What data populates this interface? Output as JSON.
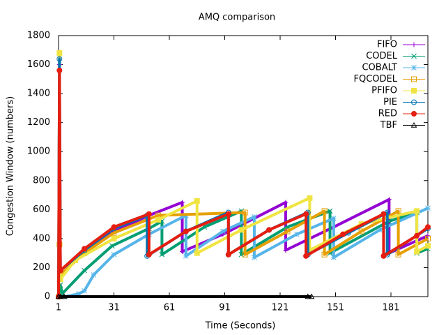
{
  "chart_data": {
    "type": "line",
    "title": "AMQ comparison",
    "x_label": "Time (Seconds)",
    "y_label": "Congestion Window (numbers)",
    "xlim": [
      1,
      201
    ],
    "xticks": [
      1,
      31,
      61,
      91,
      121,
      151,
      181
    ],
    "ylim": [
      0,
      1800
    ],
    "yticks": [
      0,
      200,
      400,
      600,
      800,
      1000,
      1200,
      1400,
      1600,
      1800
    ],
    "legend": "top-right",
    "series": [
      {
        "name": "FIFO",
        "color": "#9400d3",
        "marker": "plus",
        "x": [
          1,
          1.5,
          2,
          15,
          31,
          50,
          68,
          68,
          90,
          124,
          124,
          150,
          180,
          180,
          201
        ],
        "values": [
          0,
          1600,
          180,
          320,
          450,
          560,
          650,
          310,
          430,
          650,
          320,
          480,
          670,
          300,
          420
        ]
      },
      {
        "name": "CODEL",
        "color": "#009e73",
        "marker": "cross",
        "x": [
          1,
          2,
          3,
          15,
          30,
          50,
          57,
          57,
          80,
          100,
          100,
          125,
          148,
          148,
          180,
          195,
          195,
          201
        ],
        "values": [
          0,
          80,
          20,
          180,
          350,
          470,
          520,
          290,
          480,
          590,
          290,
          480,
          590,
          300,
          520,
          580,
          300,
          330
        ]
      },
      {
        "name": "COBALT",
        "color": "#56b4e9",
        "marker": "star",
        "x": [
          1,
          5,
          12,
          15,
          20,
          31,
          50,
          70,
          70,
          90,
          107,
          107,
          130,
          150,
          150,
          175,
          201
        ],
        "values": [
          0,
          0,
          20,
          40,
          150,
          290,
          430,
          560,
          280,
          450,
          550,
          270,
          430,
          540,
          270,
          460,
          610
        ]
      },
      {
        "name": "FQCODEL",
        "color": "#e69f00",
        "marker": "square",
        "x": [
          1,
          1.5,
          2,
          15,
          31,
          55,
          102,
          102,
          125,
          145,
          145,
          165,
          185,
          185,
          201
        ],
        "values": [
          0,
          360,
          150,
          300,
          440,
          560,
          580,
          290,
          450,
          590,
          290,
          450,
          590,
          290,
          400
        ]
      },
      {
        "name": "PFIFO",
        "color": "#f0e442",
        "marker": "filled-square",
        "x": [
          1,
          1.5,
          2,
          10,
          31,
          55,
          76,
          76,
          100,
          137,
          137,
          165,
          195,
          195,
          201
        ],
        "values": [
          0,
          1680,
          120,
          250,
          400,
          530,
          660,
          300,
          460,
          680,
          320,
          500,
          590,
          310,
          350
        ]
      },
      {
        "name": "PIE",
        "color": "#0072b2",
        "marker": "circle",
        "x": [
          1,
          1.5,
          2,
          15,
          31,
          49,
          49,
          70,
          93,
          93,
          115,
          136,
          136,
          158,
          179,
          179,
          201
        ],
        "values": [
          0,
          1640,
          180,
          320,
          470,
          560,
          280,
          450,
          580,
          290,
          460,
          580,
          290,
          440,
          580,
          290,
          470
        ]
      },
      {
        "name": "RED",
        "color": "#e51e10",
        "marker": "filled-circle",
        "x": [
          1,
          1.5,
          2,
          15,
          31,
          50,
          50,
          70,
          93,
          93,
          115,
          135,
          135,
          155,
          177,
          177,
          195,
          201
        ],
        "values": [
          0,
          1560,
          180,
          330,
          480,
          570,
          290,
          450,
          570,
          290,
          460,
          570,
          280,
          430,
          570,
          280,
          420,
          480
        ]
      },
      {
        "name": "TBF",
        "color": "#000000",
        "marker": "triangle",
        "x": [
          1,
          2,
          4,
          136,
          138
        ],
        "values": [
          0,
          0,
          0,
          0,
          0
        ]
      }
    ]
  }
}
